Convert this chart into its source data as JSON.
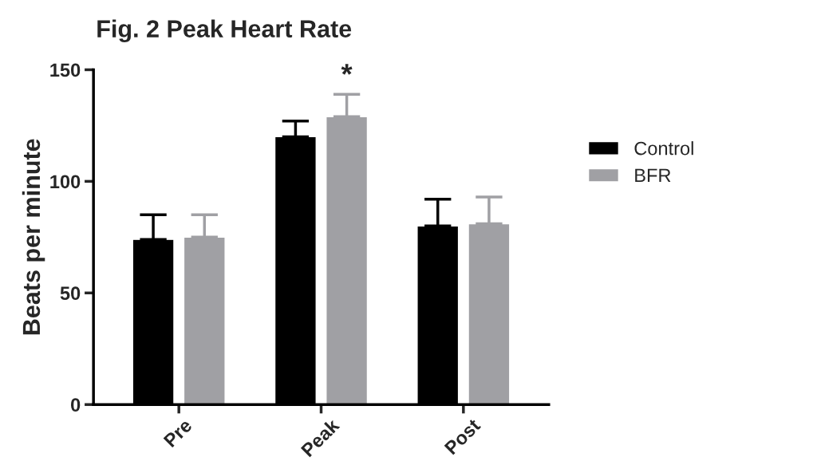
{
  "chart_data": {
    "type": "bar",
    "title": "Fig. 2 Peak Heart Rate",
    "ylabel": "Beats per minute",
    "categories": [
      "Pre",
      "Peak",
      "Post"
    ],
    "series": [
      {
        "name": "Control",
        "color": "#000000",
        "values": [
          74,
          120,
          80
        ],
        "errors": [
          [
            74,
            85
          ],
          [
            120,
            127
          ],
          [
            80,
            92
          ]
        ]
      },
      {
        "name": "BFR",
        "color": "#a0a0a4",
        "values": [
          75,
          129,
          81
        ],
        "errors": [
          [
            75,
            85
          ],
          [
            129,
            139
          ],
          [
            81,
            93
          ]
        ]
      }
    ],
    "ylim": [
      0,
      150
    ],
    "yticks": [
      0,
      50,
      100,
      150
    ],
    "grid": false,
    "legend": "right",
    "annotations": [
      "*"
    ]
  }
}
